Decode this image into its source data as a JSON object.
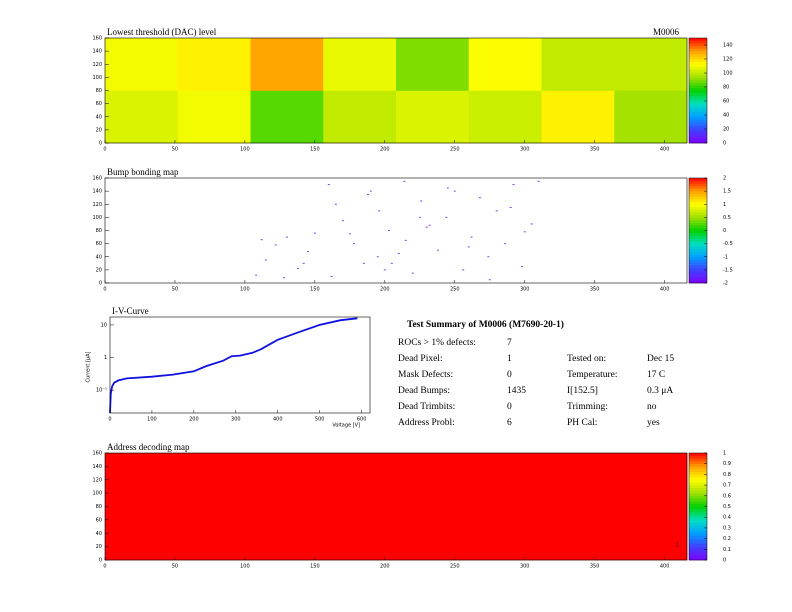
{
  "chart_data": [
    {
      "type": "heatmap",
      "title": "Lowest threshold (DAC) level",
      "label": "M0006",
      "xlim": [
        0,
        416
      ],
      "ylim": [
        0,
        160
      ],
      "xticks": [
        0,
        50,
        100,
        150,
        200,
        250,
        300,
        350,
        400
      ],
      "yticks": [
        0,
        20,
        40,
        60,
        80,
        100,
        120,
        140,
        160
      ],
      "zlim": [
        0,
        150
      ],
      "zticks": [
        0,
        20,
        40,
        60,
        80,
        100,
        120,
        140
      ],
      "values": [
        [
          105,
          110,
          85,
          100,
          105,
          102,
          115,
          95
        ],
        [
          110,
          115,
          130,
          108,
          90,
          112,
          100,
          100
        ]
      ]
    },
    {
      "type": "scatter",
      "title": "Bump bonding map",
      "color": "#8040e0",
      "xlim": [
        0,
        416
      ],
      "ylim": [
        0,
        160
      ],
      "xticks": [
        0,
        50,
        100,
        150,
        200,
        250,
        300,
        350,
        400
      ],
      "yticks": [
        0,
        20,
        40,
        60,
        80,
        100,
        120,
        140,
        160
      ],
      "zlim": [
        -2,
        2
      ],
      "zticks": [
        -2,
        -1.5,
        -1,
        -0.5,
        0,
        0.5,
        1,
        1.5,
        2
      ],
      "x": [
        108,
        115,
        122,
        130,
        138,
        145,
        150,
        112,
        128,
        142,
        160,
        165,
        170,
        178,
        185,
        190,
        196,
        203,
        210,
        214,
        220,
        226,
        232,
        238,
        244,
        250,
        256,
        262,
        268,
        274,
        280,
        286,
        292,
        298,
        305,
        310,
        162,
        175,
        188,
        200,
        215,
        230,
        245,
        260,
        275,
        290,
        300,
        195,
        205,
        225
      ],
      "y": [
        12,
        35,
        58,
        70,
        22,
        48,
        76,
        66,
        8,
        30,
        150,
        120,
        95,
        60,
        30,
        140,
        110,
        80,
        45,
        155,
        15,
        125,
        88,
        50,
        100,
        140,
        20,
        70,
        130,
        40,
        110,
        60,
        150,
        25,
        90,
        155,
        10,
        75,
        135,
        20,
        65,
        85,
        145,
        55,
        5,
        115,
        78,
        40,
        30,
        100
      ]
    },
    {
      "type": "line",
      "title": "I-V-Curve",
      "xlabel": "Voltage [V]",
      "ylabel": "Current [μA]",
      "color": "#1010e0",
      "logy": true,
      "xlim": [
        0,
        620
      ],
      "ylim": [
        0.02,
        17.5
      ],
      "xticks": [
        0,
        100,
        200,
        300,
        400,
        500,
        600
      ],
      "yticks": [
        {
          "value": 0.1,
          "label": "10⁻¹"
        },
        1,
        10
      ],
      "x": [
        0,
        2,
        5,
        10,
        20,
        40,
        100,
        150,
        200,
        230,
        270,
        290,
        310,
        340,
        360,
        400,
        450,
        500,
        550,
        590
      ],
      "y": [
        0.02,
        0.08,
        0.13,
        0.17,
        0.2,
        0.23,
        0.26,
        0.3,
        0.38,
        0.55,
        0.8,
        1.1,
        1.15,
        1.4,
        1.8,
        3.5,
        6,
        10,
        14,
        16
      ]
    },
    {
      "type": "heatmap",
      "title": "Address decoding map",
      "annotation": "1",
      "xlim": [
        0,
        416
      ],
      "ylim": [
        0,
        160
      ],
      "xticks": [
        0,
        50,
        100,
        150,
        200,
        250,
        300,
        350,
        400
      ],
      "yticks": [
        0,
        20,
        40,
        60,
        80,
        100,
        120,
        140,
        160
      ],
      "zlim": [
        0,
        1
      ],
      "zticks": [
        0,
        0.1,
        0.2,
        0.3,
        0.4,
        0.5,
        0.6,
        0.7,
        0.8,
        0.9,
        1
      ],
      "values": [
        [
          1
        ]
      ]
    }
  ],
  "palette": [
    "#7f00ff",
    "#4040ff",
    "#00a0ff",
    "#00e0c0",
    "#00d000",
    "#a0e000",
    "#ffff00",
    "#ffa000",
    "#ff0000"
  ],
  "summary": {
    "title": "Test Summary of M0006 (M7690-20-1)",
    "rows": [
      [
        "ROCs > 1% defects:",
        "7"
      ],
      [
        "Dead Pixel:",
        "1",
        "Tested on:",
        "Dec 15"
      ],
      [
        "Mask Defects:",
        "0",
        "Temperature:",
        "17 C"
      ],
      [
        "Dead Bumps:",
        "1435",
        "I[152.5]",
        "0.3 μA"
      ],
      [
        "Dead Trimbits:",
        "0",
        "Trimming:",
        "no"
      ],
      [
        "Address Probl:",
        "6",
        "PH Cal:",
        "yes"
      ]
    ]
  }
}
